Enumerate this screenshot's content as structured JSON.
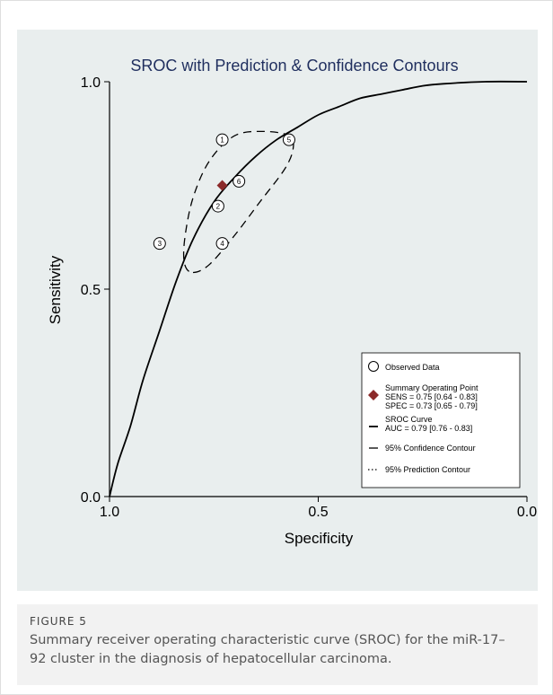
{
  "figure": {
    "label": "FIGURE 5",
    "caption": "Summary receiver operating characteristic curve (SROC) for the miR-17–92 cluster in the diagnosis of hepatocellular carcinoma."
  },
  "colors": {
    "panel_background": "#e9eeee",
    "title": "#1f2e5e",
    "summary_point": "#8b2a2a",
    "curve": "#000000"
  },
  "chart_data": {
    "type": "scatter",
    "title": "SROC with Prediction & Confidence Contours",
    "xlabel": "Specificity",
    "ylabel": "Sensitivity",
    "x_reversed": true,
    "xlim": [
      1.0,
      0.0
    ],
    "ylim": [
      0.0,
      1.0
    ],
    "x_ticks": [
      "1.0",
      "0.5",
      "0.0"
    ],
    "y_ticks": [
      "0.0",
      "0.5",
      "1.0"
    ],
    "grid": false,
    "legend_position": "bottom-right",
    "observed_data": [
      {
        "id": "1",
        "specificity": 0.73,
        "sensitivity": 0.86
      },
      {
        "id": "2",
        "specificity": 0.74,
        "sensitivity": 0.7
      },
      {
        "id": "3",
        "specificity": 0.88,
        "sensitivity": 0.61
      },
      {
        "id": "4",
        "specificity": 0.73,
        "sensitivity": 0.61
      },
      {
        "id": "5",
        "specificity": 0.57,
        "sensitivity": 0.86
      },
      {
        "id": "6",
        "specificity": 0.69,
        "sensitivity": 0.76
      }
    ],
    "summary_point": {
      "specificity": 0.73,
      "sensitivity": 0.75
    },
    "sroc_curve": [
      {
        "specificity": 1.0,
        "sensitivity": 0.0
      },
      {
        "specificity": 0.98,
        "sensitivity": 0.08
      },
      {
        "specificity": 0.95,
        "sensitivity": 0.17
      },
      {
        "specificity": 0.92,
        "sensitivity": 0.28
      },
      {
        "specificity": 0.88,
        "sensitivity": 0.4
      },
      {
        "specificity": 0.84,
        "sensitivity": 0.52
      },
      {
        "specificity": 0.8,
        "sensitivity": 0.62
      },
      {
        "specificity": 0.75,
        "sensitivity": 0.71
      },
      {
        "specificity": 0.7,
        "sensitivity": 0.77
      },
      {
        "specificity": 0.65,
        "sensitivity": 0.82
      },
      {
        "specificity": 0.6,
        "sensitivity": 0.86
      },
      {
        "specificity": 0.55,
        "sensitivity": 0.89
      },
      {
        "specificity": 0.5,
        "sensitivity": 0.92
      },
      {
        "specificity": 0.45,
        "sensitivity": 0.94
      },
      {
        "specificity": 0.4,
        "sensitivity": 0.96
      },
      {
        "specificity": 0.35,
        "sensitivity": 0.97
      },
      {
        "specificity": 0.3,
        "sensitivity": 0.98
      },
      {
        "specificity": 0.25,
        "sensitivity": 0.99
      },
      {
        "specificity": 0.2,
        "sensitivity": 0.995
      },
      {
        "specificity": 0.1,
        "sensitivity": 1.0
      },
      {
        "specificity": 0.0,
        "sensitivity": 1.0
      }
    ],
    "confidence_contour": [
      {
        "specificity": 0.8,
        "sensitivity": 0.54
      },
      {
        "specificity": 0.76,
        "sensitivity": 0.56
      },
      {
        "specificity": 0.7,
        "sensitivity": 0.63
      },
      {
        "specificity": 0.64,
        "sensitivity": 0.71
      },
      {
        "specificity": 0.58,
        "sensitivity": 0.79
      },
      {
        "specificity": 0.56,
        "sensitivity": 0.84
      },
      {
        "specificity": 0.57,
        "sensitivity": 0.87
      },
      {
        "specificity": 0.63,
        "sensitivity": 0.88
      },
      {
        "specificity": 0.7,
        "sensitivity": 0.87
      },
      {
        "specificity": 0.76,
        "sensitivity": 0.81
      },
      {
        "specificity": 0.8,
        "sensitivity": 0.72
      },
      {
        "specificity": 0.82,
        "sensitivity": 0.62
      },
      {
        "specificity": 0.82,
        "sensitivity": 0.56
      },
      {
        "specificity": 0.8,
        "sensitivity": 0.54
      }
    ],
    "legend": {
      "observed": "Observed Data",
      "summary_title": "Summary Operating Point",
      "sens": "SENS = 0.75 [0.64 - 0.83]",
      "spec": "SPEC = 0.73 [0.65 - 0.79]",
      "sroc_title": "SROC Curve",
      "auc": "AUC = 0.79 [0.76 - 0.83]",
      "confidence": "95% Confidence Contour",
      "prediction": "95% Prediction Contour"
    }
  }
}
